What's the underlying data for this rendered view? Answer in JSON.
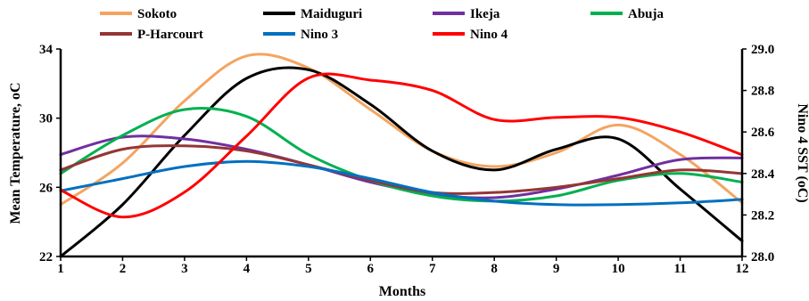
{
  "chart_data": {
    "type": "line",
    "xlabel": "Months",
    "ylabel_left": "Mean Temperature, oC",
    "ylabel_right": "Nino 4 SST (oC)",
    "x": [
      1,
      2,
      3,
      4,
      5,
      6,
      7,
      8,
      9,
      10,
      11,
      12
    ],
    "x_ticks": [
      "1",
      "2",
      "3",
      "4",
      "5",
      "6",
      "7",
      "8",
      "9",
      "10",
      "11",
      "12"
    ],
    "ylim_left": [
      22,
      34
    ],
    "yticks_left": [
      "22",
      "26",
      "30",
      "34"
    ],
    "ylim_right": [
      28.0,
      29.0
    ],
    "yticks_right": [
      "28.0",
      "28.2",
      "28.4",
      "28.6",
      "28.8",
      "29.0"
    ],
    "grid": false,
    "legend_position": "top",
    "series": [
      {
        "name": "Sokoto",
        "axis": "left",
        "color": "#F4A460",
        "values": [
          25.0,
          27.4,
          31.0,
          33.6,
          32.9,
          30.5,
          28.1,
          27.2,
          28.0,
          29.6,
          27.9,
          25.1
        ]
      },
      {
        "name": "Maiduguri",
        "axis": "left",
        "color": "#000000",
        "values": [
          22.0,
          25.0,
          29.0,
          32.3,
          32.8,
          30.8,
          28.1,
          27.0,
          28.2,
          28.8,
          25.9,
          22.9
        ]
      },
      {
        "name": "Ikeja",
        "axis": "left",
        "color": "#7030A0",
        "values": [
          27.9,
          28.9,
          28.8,
          28.2,
          27.3,
          26.3,
          25.6,
          25.4,
          25.9,
          26.7,
          27.6,
          27.7
        ]
      },
      {
        "name": "Abuja",
        "axis": "left",
        "color": "#00B050",
        "values": [
          26.8,
          29.0,
          30.5,
          30.1,
          27.9,
          26.4,
          25.5,
          25.2,
          25.5,
          26.4,
          26.8,
          26.3
        ]
      },
      {
        "name": "P-Harcourt",
        "axis": "left",
        "color": "#943634",
        "values": [
          27.0,
          28.2,
          28.4,
          28.1,
          27.3,
          26.4,
          25.7,
          25.7,
          26.0,
          26.5,
          27.0,
          26.8
        ]
      },
      {
        "name": "Nino 3",
        "axis": "left",
        "color": "#0070C0",
        "values": [
          25.8,
          26.5,
          27.2,
          27.5,
          27.2,
          26.5,
          25.7,
          25.2,
          25.0,
          25.0,
          25.1,
          25.3
        ]
      },
      {
        "name": "Nino 4",
        "axis": "right",
        "color": "#FF0000",
        "values": [
          28.32,
          28.19,
          28.31,
          28.58,
          28.86,
          28.85,
          28.8,
          28.66,
          28.67,
          28.67,
          28.6,
          28.49
        ]
      }
    ]
  }
}
